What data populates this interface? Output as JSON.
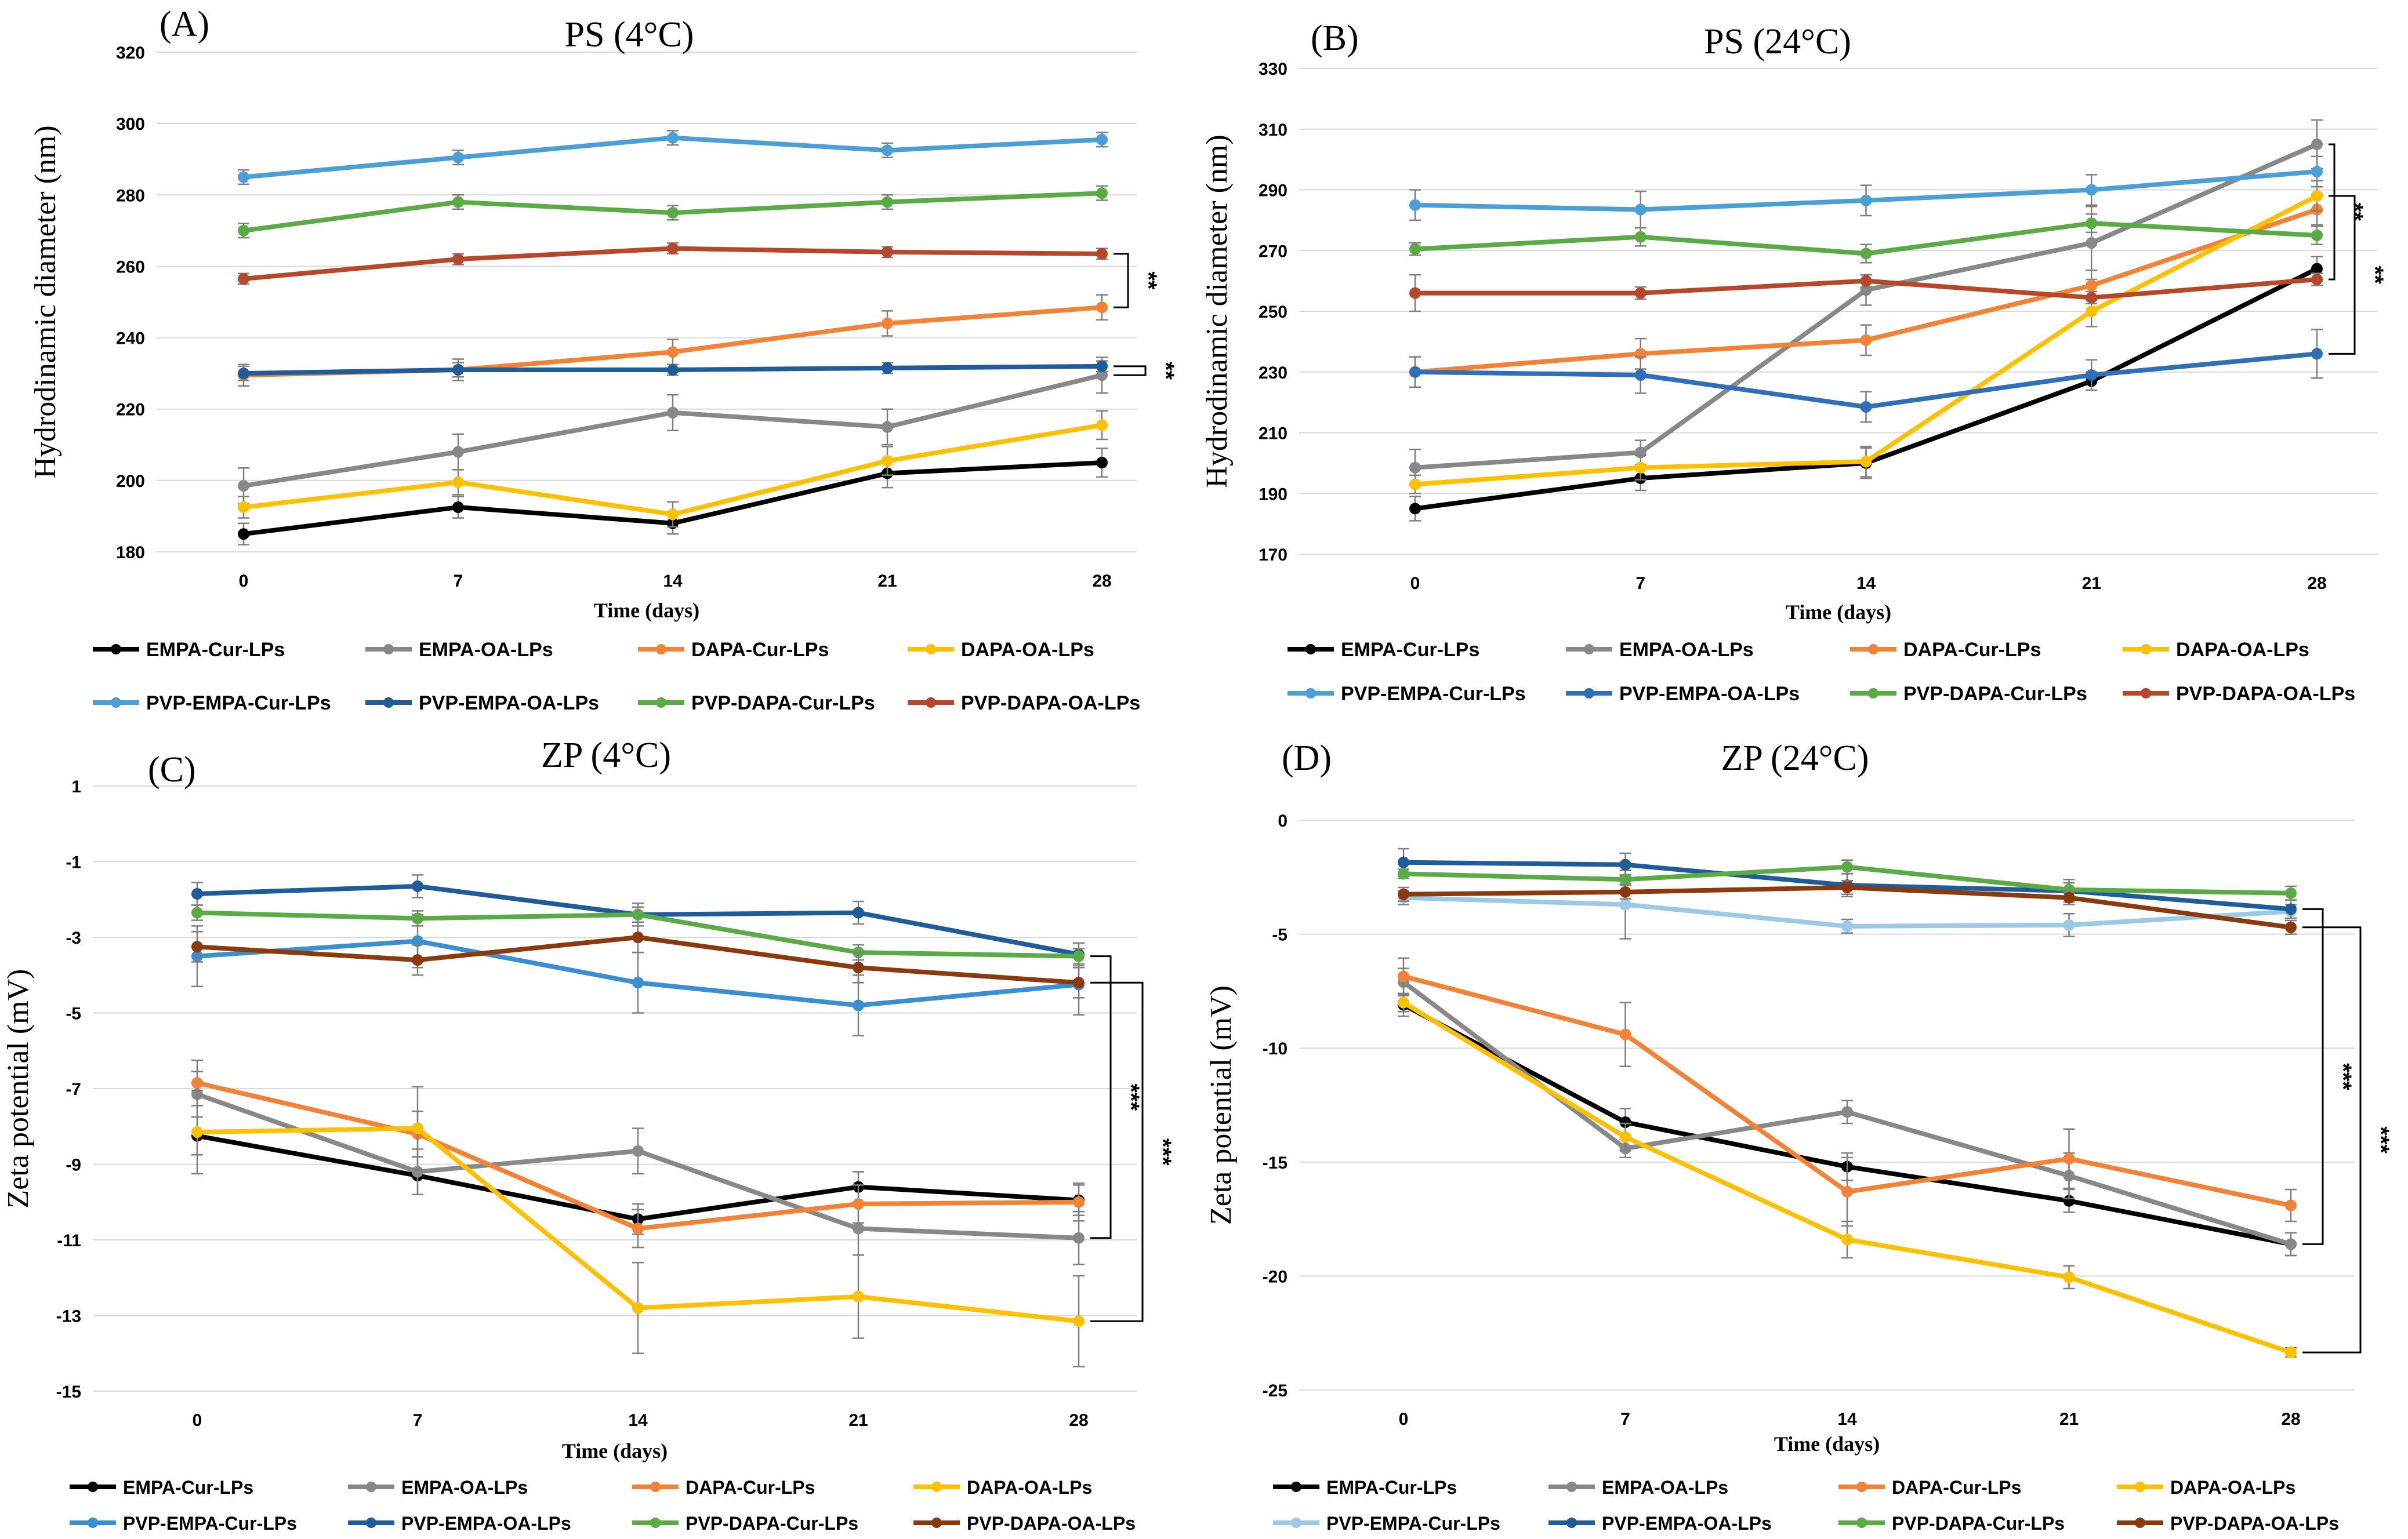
{
  "figure": {
    "description_free": true,
    "colors": {
      "EMPA-Cur-LPs": "#000000",
      "EMPA-OA-LPs": "#888888",
      "DAPA-Cur-LPs": "#f28236",
      "DAPA-OA-LPs": "#ffc000",
      "PVP-EMPA-Cur-LPs": "#4a9fd6",
      "PVP-EMPA-OA-LPs": "#1f5c99",
      "PVP-DAPA-Cur-LPs": "#5aaa45",
      "PVP-DAPA-OA-LPs": "#b5472a"
    }
  },
  "chart_data": [
    {
      "id": "A",
      "type": "line",
      "panel_label": "(A)",
      "title": "PS (4°C)",
      "xlabel": "Time (days)",
      "ylabel": "Hydrodinamic diameter (nm)",
      "categories": [
        "0",
        "7",
        "14",
        "21",
        "28"
      ],
      "yticks": [
        180,
        200,
        220,
        240,
        260,
        280,
        300,
        320
      ],
      "ylim": [
        180,
        320
      ],
      "grid": true,
      "series": [
        {
          "name": "EMPA-Cur-LPs",
          "color": "#000000",
          "values": [
            185,
            192.5,
            188,
            202,
            205
          ],
          "err": [
            3,
            3,
            3,
            4,
            4
          ]
        },
        {
          "name": "EMPA-OA-LPs",
          "color": "#888888",
          "values": [
            198.5,
            208,
            219,
            215,
            229.5
          ],
          "err": [
            5,
            5,
            5,
            5,
            5
          ]
        },
        {
          "name": "DAPA-Cur-LPs",
          "color": "#f28236",
          "values": [
            229.5,
            231,
            236,
            244,
            248.5
          ],
          "err": [
            3,
            3,
            3.5,
            3.5,
            3.5
          ]
        },
        {
          "name": "DAPA-OA-LPs",
          "color": "#ffc000",
          "values": [
            192.5,
            199.5,
            190.5,
            205.5,
            215.5
          ],
          "err": [
            3,
            3.5,
            3.5,
            4,
            4
          ]
        },
        {
          "name": "PVP-EMPA-Cur-LPs",
          "color": "#4a9fd6",
          "values": [
            285,
            290.5,
            296,
            292.5,
            295.5
          ],
          "err": [
            2,
            2,
            2,
            2,
            2
          ]
        },
        {
          "name": "PVP-EMPA-OA-LPs",
          "color": "#1f5c99",
          "values": [
            230,
            231,
            231,
            231.5,
            232
          ],
          "err": [
            2,
            2,
            1.5,
            1.5,
            1.5
          ]
        },
        {
          "name": "PVP-DAPA-Cur-LPs",
          "color": "#5aaa45",
          "values": [
            270,
            278,
            275,
            278,
            280.5
          ],
          "err": [
            2,
            2,
            2,
            2,
            2
          ]
        },
        {
          "name": "PVP-DAPA-OA-LPs",
          "color": "#b5472a",
          "values": [
            256.5,
            262,
            265,
            264,
            263.5
          ],
          "err": [
            1.5,
            1.5,
            1.5,
            1.5,
            1.5
          ]
        }
      ],
      "significance": [
        {
          "label": "**",
          "between": [
            "PVP-DAPA-OA-LPs",
            "DAPA-Cur-LPs"
          ],
          "at": "28"
        },
        {
          "label": "**",
          "between": [
            "PVP-EMPA-OA-LPs",
            "EMPA-OA-LPs"
          ],
          "at": "28"
        }
      ]
    },
    {
      "id": "B",
      "type": "line",
      "panel_label": "(B)",
      "title": "PS (24°C)",
      "xlabel": "Time (days)",
      "ylabel": "Hydrodinamic diameter (nm)",
      "categories": [
        "0",
        "7",
        "14",
        "21",
        "28"
      ],
      "yticks": [
        170,
        190,
        210,
        230,
        250,
        270,
        290,
        310,
        330
      ],
      "ylim": [
        170,
        330
      ],
      "grid": true,
      "series": [
        {
          "name": "EMPA-Cur-LPs",
          "color": "#000000",
          "values": [
            185,
            195,
            200,
            227,
            264
          ],
          "err": [
            4,
            4,
            5,
            3,
            4
          ]
        },
        {
          "name": "EMPA-OA-LPs",
          "color": "#888888",
          "values": [
            198.5,
            203.5,
            257,
            272.5,
            305
          ],
          "err": [
            6,
            4,
            5,
            12,
            8
          ]
        },
        {
          "name": "DAPA-Cur-LPs",
          "color": "#f28236",
          "values": [
            230,
            236,
            240.5,
            258.5,
            283.5
          ],
          "err": [
            5,
            5,
            5,
            5,
            5
          ]
        },
        {
          "name": "DAPA-OA-LPs",
          "color": "#ffc000",
          "values": [
            193,
            198.5,
            200.5,
            250,
            288
          ],
          "err": [
            3,
            4,
            5,
            5,
            5
          ]
        },
        {
          "name": "PVP-EMPA-Cur-LPs",
          "color": "#4a9fd6",
          "values": [
            285,
            283.5,
            286.5,
            290,
            296
          ],
          "err": [
            5,
            6,
            5,
            5,
            5
          ]
        },
        {
          "name": "PVP-EMPA-OA-LPs",
          "color": "#2f6fb8",
          "values": [
            230,
            229,
            218.5,
            229,
            236
          ],
          "err": [
            5,
            6,
            5,
            5,
            8
          ]
        },
        {
          "name": "PVP-DAPA-Cur-LPs",
          "color": "#5aaa45",
          "values": [
            270.5,
            274.5,
            269,
            279,
            275
          ],
          "err": [
            2,
            3,
            3,
            3,
            3
          ]
        },
        {
          "name": "PVP-DAPA-OA-LPs",
          "color": "#b5472a",
          "values": [
            256,
            256,
            260,
            254.5,
            260.5
          ],
          "err": [
            6,
            2,
            2,
            2,
            2
          ]
        }
      ],
      "significance": [
        {
          "label": "**",
          "between": [
            "EMPA-OA-LPs",
            "PVP-DAPA-OA-LPs"
          ],
          "at": "28"
        },
        {
          "label": "**",
          "between": [
            "DAPA-OA-LPs",
            "PVP-EMPA-OA-LPs"
          ],
          "at": "28"
        }
      ]
    },
    {
      "id": "C",
      "type": "line",
      "panel_label": "(C)",
      "title": "ZP (4°C)",
      "xlabel": "Time (days)",
      "ylabel": "Zeta potential (mV)",
      "categories": [
        "0",
        "7",
        "14",
        "21",
        "28"
      ],
      "yticks": [
        -15,
        -13,
        -11,
        -9,
        -7,
        -5,
        -3,
        -1,
        1
      ],
      "ylim": [
        -15,
        1
      ],
      "grid": true,
      "series": [
        {
          "name": "EMPA-Cur-LPs",
          "color": "#000000",
          "values": [
            -8.25,
            -9.3,
            -10.45,
            -9.6,
            -9.95
          ],
          "err": [
            0.5,
            0.5,
            0.4,
            0.4,
            0.4
          ]
        },
        {
          "name": "EMPA-OA-LPs",
          "color": "#888888",
          "values": [
            -7.15,
            -9.2,
            -8.65,
            -10.7,
            -10.95
          ],
          "err": [
            0.6,
            0.6,
            0.6,
            0.7,
            0.7
          ]
        },
        {
          "name": "DAPA-Cur-LPs",
          "color": "#f28236",
          "values": [
            -6.85,
            -8.2,
            -10.7,
            -10.05,
            -10.0
          ],
          "err": [
            0.6,
            0.6,
            0.5,
            0.5,
            0.5
          ]
        },
        {
          "name": "DAPA-OA-LPs",
          "color": "#ffc000",
          "values": [
            -8.15,
            -8.05,
            -12.8,
            -12.5,
            -13.15
          ],
          "err": [
            1.1,
            1.1,
            1.2,
            1.1,
            1.2
          ]
        },
        {
          "name": "PVP-EMPA-Cur-LPs",
          "color": "#3a8fd0",
          "values": [
            -3.5,
            -3.1,
            -4.2,
            -4.8,
            -4.25
          ],
          "err": [
            0.8,
            0.7,
            0.8,
            0.8,
            0.8
          ]
        },
        {
          "name": "PVP-EMPA-OA-LPs",
          "color": "#1f5c99",
          "values": [
            -1.85,
            -1.65,
            -2.4,
            -2.35,
            -3.45
          ],
          "err": [
            0.3,
            0.3,
            0.3,
            0.3,
            0.3
          ]
        },
        {
          "name": "PVP-DAPA-Cur-LPs",
          "color": "#5aaa45",
          "values": [
            -2.35,
            -2.5,
            -2.4,
            -3.4,
            -3.5
          ],
          "err": [
            0.2,
            0.2,
            0.2,
            0.2,
            0.2
          ]
        },
        {
          "name": "PVP-DAPA-OA-LPs",
          "color": "#8b3a0e",
          "values": [
            -3.25,
            -3.6,
            -3.0,
            -3.8,
            -4.2
          ],
          "err": [
            0.4,
            0.4,
            0.4,
            0.4,
            0.4
          ]
        }
      ],
      "significance": [
        {
          "label": "***",
          "between": [
            "PVP-DAPA-Cur-LPs",
            "EMPA-OA-LPs"
          ],
          "at": "28"
        },
        {
          "label": "***",
          "between": [
            "PVP-DAPA-OA-LPs",
            "DAPA-OA-LPs"
          ],
          "at": "28"
        }
      ]
    },
    {
      "id": "D",
      "type": "line",
      "panel_label": "(D)",
      "title": "ZP (24°C)",
      "xlabel": "Time (days)",
      "ylabel": "Zeta potential  (mV)",
      "categories": [
        "0",
        "7",
        "14",
        "21",
        "28"
      ],
      "yticks": [
        -25,
        -20,
        -15,
        -10,
        -5,
        0
      ],
      "ylim": [
        -25,
        0
      ],
      "grid": true,
      "series": [
        {
          "name": "EMPA-Cur-LPs",
          "color": "#000000",
          "values": [
            -8.1,
            -13.25,
            -15.2,
            -16.7,
            -18.6
          ],
          "err": [
            0.5,
            0.6,
            0.6,
            0.5,
            0.5
          ]
        },
        {
          "name": "EMPA-OA-LPs",
          "color": "#888888",
          "values": [
            -7.1,
            -14.4,
            -12.8,
            -15.6,
            -18.6
          ],
          "err": [
            0.6,
            0.4,
            0.5,
            1.0,
            0.5
          ]
        },
        {
          "name": "DAPA-Cur-LPs",
          "color": "#f28236",
          "values": [
            -6.85,
            -9.4,
            -16.3,
            -14.85,
            -16.9
          ],
          "err": [
            0.8,
            1.4,
            1.5,
            1.3,
            0.7
          ]
        },
        {
          "name": "DAPA-OA-LPs",
          "color": "#ffc000",
          "values": [
            -8.0,
            -13.9,
            -18.4,
            -20.05,
            -23.35
          ],
          "err": [
            0.4,
            0.6,
            0.8,
            0.5,
            0.2
          ]
        },
        {
          "name": "PVP-EMPA-Cur-LPs",
          "color": "#9cc9e8",
          "values": [
            -3.4,
            -3.7,
            -4.65,
            -4.6,
            -4.0
          ],
          "err": [
            0.3,
            1.5,
            0.3,
            0.5,
            0.3
          ]
        },
        {
          "name": "PVP-EMPA-OA-LPs",
          "color": "#1f5c99",
          "values": [
            -1.85,
            -1.95,
            -2.85,
            -3.1,
            -3.9
          ],
          "err": [
            0.6,
            0.5,
            0.5,
            0.5,
            0.4
          ]
        },
        {
          "name": "PVP-DAPA-Cur-LPs",
          "color": "#5aaa45",
          "values": [
            -2.35,
            -2.6,
            -2.05,
            -3.05,
            -3.2
          ],
          "err": [
            0.2,
            0.2,
            0.3,
            0.3,
            0.3
          ]
        },
        {
          "name": "PVP-DAPA-OA-LPs",
          "color": "#8b3a0e",
          "values": [
            -3.25,
            -3.15,
            -2.95,
            -3.4,
            -4.7
          ],
          "err": [
            0.3,
            0.3,
            0.3,
            0.3,
            0.3
          ]
        }
      ],
      "significance": [
        {
          "label": "***",
          "between": [
            "PVP-EMPA-OA-LPs",
            "EMPA-OA-LPs"
          ],
          "at": "28"
        },
        {
          "label": "***",
          "between": [
            "PVP-DAPA-OA-LPs",
            "DAPA-OA-LPs"
          ],
          "at": "28"
        }
      ]
    }
  ]
}
